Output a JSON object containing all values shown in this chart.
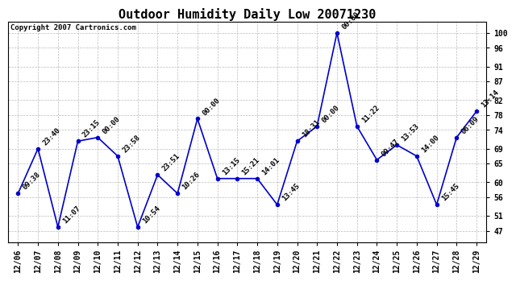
{
  "title": "Outdoor Humidity Daily Low 20071230",
  "copyright_text": "Copyright 2007 Cartronics.com",
  "x_labels": [
    "12/06",
    "12/07",
    "12/08",
    "12/09",
    "12/10",
    "12/11",
    "12/12",
    "12/13",
    "12/14",
    "12/15",
    "12/16",
    "12/17",
    "12/18",
    "12/19",
    "12/20",
    "12/21",
    "12/22",
    "12/23",
    "12/24",
    "12/25",
    "12/26",
    "12/27",
    "12/28",
    "12/29"
  ],
  "y_values": [
    57,
    69,
    48,
    71,
    72,
    67,
    48,
    62,
    57,
    77,
    61,
    61,
    61,
    54,
    71,
    75,
    100,
    75,
    66,
    70,
    67,
    54,
    72,
    79
  ],
  "point_labels": [
    "09:38",
    "23:40",
    "11:07",
    "23:15",
    "00:00",
    "23:58",
    "10:54",
    "23:51",
    "10:26",
    "00:00",
    "13:15",
    "15:21",
    "14:01",
    "13:45",
    "18:31",
    "00:00",
    "00:00",
    "11:22",
    "09:47",
    "13:53",
    "14:00",
    "15:45",
    "06:09",
    "13:14"
  ],
  "y_ticks": [
    47,
    51,
    56,
    60,
    65,
    69,
    74,
    78,
    82,
    87,
    91,
    96,
    100
  ],
  "ylim": [
    44,
    103
  ],
  "line_color": "#0000cc",
  "marker_color": "#0000cc",
  "bg_color": "#ffffff",
  "grid_color": "#bbbbbb",
  "title_fontsize": 11,
  "tick_fontsize": 7,
  "copyright_fontsize": 6.5,
  "annotation_fontsize": 6.5
}
